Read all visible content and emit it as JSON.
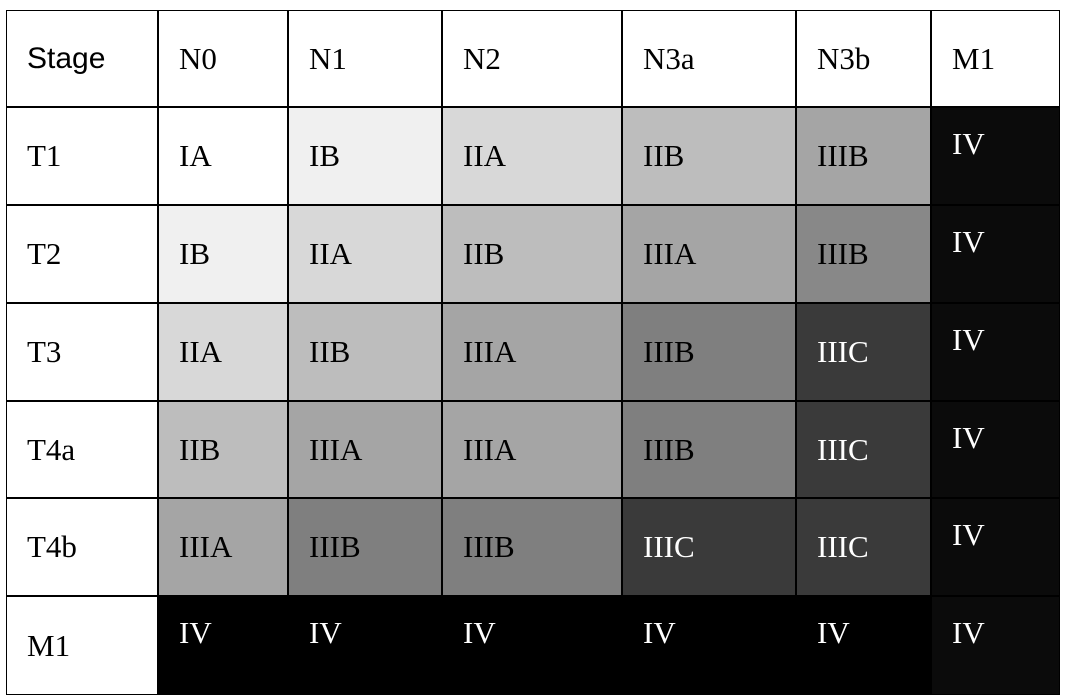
{
  "table": {
    "header": [
      "Stage",
      "N0",
      "N1",
      "N2",
      "N3a",
      "N3b",
      "M1"
    ],
    "rows": [
      [
        "T1",
        "IA",
        "IB",
        "IIA",
        "IIB",
        "IIIB",
        "IV"
      ],
      [
        "T2",
        "IB",
        "IIA",
        "IIB",
        "IIIA",
        "IIIB",
        "IV"
      ],
      [
        "T3",
        "IIA",
        "IIB",
        "IIIA",
        "IIIB",
        "IIIC",
        "IV"
      ],
      [
        "T4a",
        "IIB",
        "IIIA",
        "IIIA",
        "IIIB",
        "IIIC",
        "IV"
      ],
      [
        "T4b",
        "IIIA",
        "IIIB",
        "IIIB",
        "IIIC",
        "IIIC",
        "IV"
      ],
      [
        "M1",
        "IV",
        "IV",
        "IV",
        "IV",
        "IV",
        "IV"
      ]
    ]
  }
}
